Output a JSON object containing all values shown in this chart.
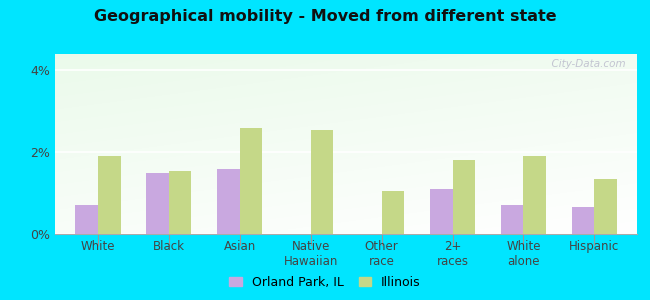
{
  "title": "Geographical mobility - Moved from different state",
  "categories": [
    "White",
    "Black",
    "Asian",
    "Native\nHawaiian",
    "Other\nrace",
    "2+\nraces",
    "White\nalone",
    "Hispanic"
  ],
  "orland_park": [
    0.7,
    1.5,
    1.6,
    0.0,
    0.0,
    1.1,
    0.7,
    0.65
  ],
  "illinois": [
    1.9,
    1.55,
    2.6,
    2.55,
    1.05,
    1.8,
    1.9,
    1.35
  ],
  "orland_color": "#c9a8e0",
  "illinois_color": "#c5d888",
  "background_outer": "#00e5ff",
  "ylim": [
    0,
    4.4
  ],
  "yticks": [
    0,
    2,
    4
  ],
  "ytick_labels": [
    "0%",
    "2%",
    "4%"
  ],
  "bar_width": 0.32,
  "watermark": "  City-Data.com",
  "legend_labels": [
    "Orland Park, IL",
    "Illinois"
  ]
}
